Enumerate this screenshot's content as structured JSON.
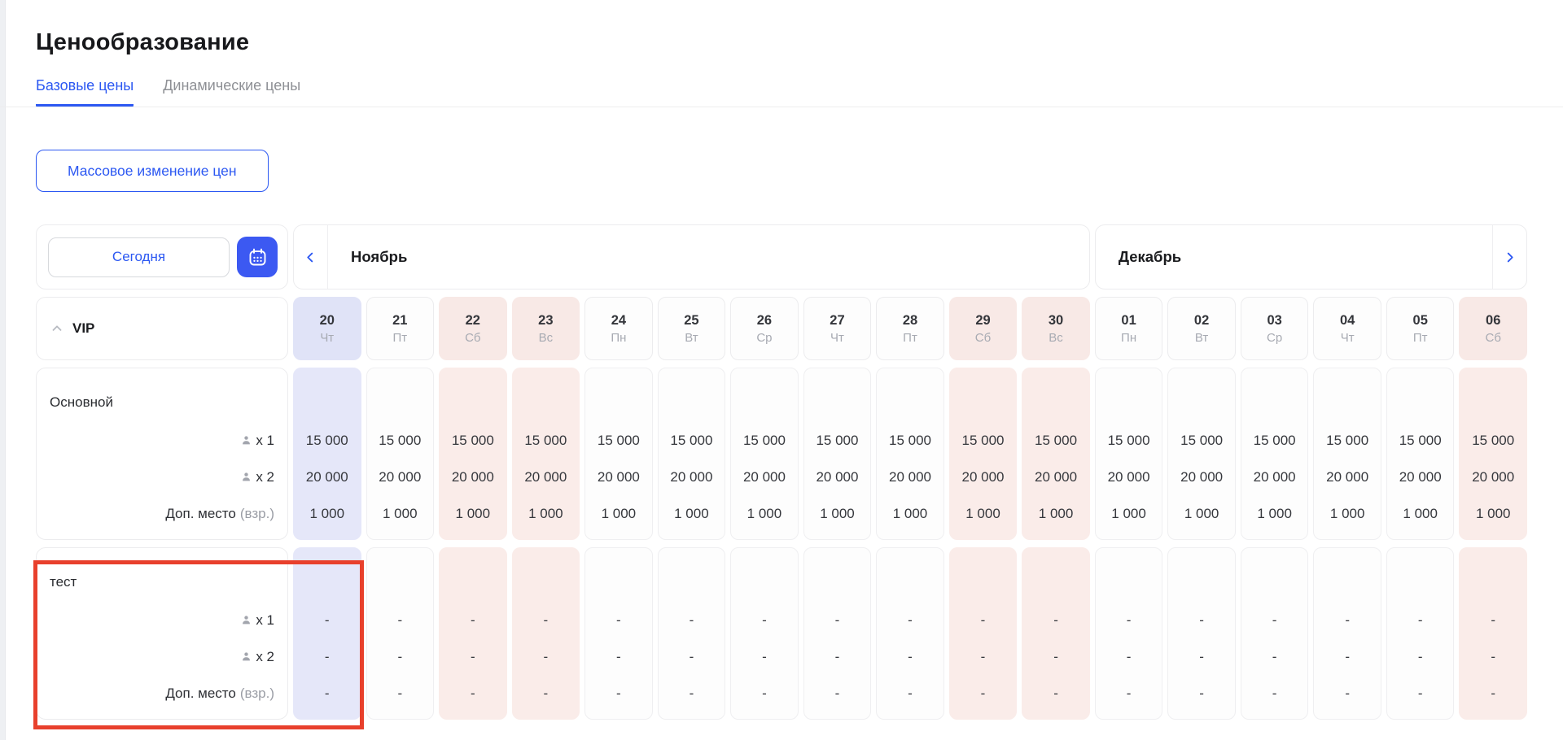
{
  "page": {
    "title": "Ценообразование"
  },
  "tabs": [
    {
      "label": "Базовые цены",
      "active": true
    },
    {
      "label": "Динамические цены",
      "active": false
    }
  ],
  "toolbar": {
    "bulk_change_label": "Массовое изменение цен"
  },
  "date_nav": {
    "today_label": "Сегодня",
    "months": [
      {
        "name": "Ноябрь",
        "columns": 11
      },
      {
        "name": "Декабрь",
        "columns": 6
      }
    ]
  },
  "category": {
    "name": "VIP",
    "state": "expanded"
  },
  "columns": [
    {
      "day": "20",
      "weekday": "Чт",
      "kind": "today"
    },
    {
      "day": "21",
      "weekday": "Пт",
      "kind": "normal"
    },
    {
      "day": "22",
      "weekday": "Сб",
      "kind": "weekend"
    },
    {
      "day": "23",
      "weekday": "Вс",
      "kind": "weekend"
    },
    {
      "day": "24",
      "weekday": "Пн",
      "kind": "normal"
    },
    {
      "day": "25",
      "weekday": "Вт",
      "kind": "normal"
    },
    {
      "day": "26",
      "weekday": "Ср",
      "kind": "normal"
    },
    {
      "day": "27",
      "weekday": "Чт",
      "kind": "normal"
    },
    {
      "day": "28",
      "weekday": "Пт",
      "kind": "normal"
    },
    {
      "day": "29",
      "weekday": "Сб",
      "kind": "weekend"
    },
    {
      "day": "30",
      "weekday": "Вс",
      "kind": "weekend"
    },
    {
      "day": "01",
      "weekday": "Пн",
      "kind": "normal"
    },
    {
      "day": "02",
      "weekday": "Вт",
      "kind": "normal"
    },
    {
      "day": "03",
      "weekday": "Ср",
      "kind": "normal"
    },
    {
      "day": "04",
      "weekday": "Чт",
      "kind": "normal"
    },
    {
      "day": "05",
      "weekday": "Пт",
      "kind": "normal"
    },
    {
      "day": "06",
      "weekday": "Сб",
      "kind": "weekend"
    }
  ],
  "sections": [
    {
      "name": "Основной",
      "highlighted": false,
      "rows": [
        {
          "icon": "person",
          "label": "x 1",
          "suffix": "",
          "values": [
            "15 000",
            "15 000",
            "15 000",
            "15 000",
            "15 000",
            "15 000",
            "15 000",
            "15 000",
            "15 000",
            "15 000",
            "15 000",
            "15 000",
            "15 000",
            "15 000",
            "15 000",
            "15 000",
            "15 000"
          ]
        },
        {
          "icon": "person",
          "label": "x 2",
          "suffix": "",
          "values": [
            "20 000",
            "20 000",
            "20 000",
            "20 000",
            "20 000",
            "20 000",
            "20 000",
            "20 000",
            "20 000",
            "20 000",
            "20 000",
            "20 000",
            "20 000",
            "20 000",
            "20 000",
            "20 000",
            "20 000"
          ]
        },
        {
          "icon": "",
          "label": "Доп. место",
          "suffix": "(взр.)",
          "values": [
            "1 000",
            "1 000",
            "1 000",
            "1 000",
            "1 000",
            "1 000",
            "1 000",
            "1 000",
            "1 000",
            "1 000",
            "1 000",
            "1 000",
            "1 000",
            "1 000",
            "1 000",
            "1 000",
            "1 000"
          ]
        }
      ]
    },
    {
      "name": "тест",
      "highlighted": true,
      "rows": [
        {
          "icon": "person",
          "label": "x 1",
          "suffix": "",
          "values": [
            "-",
            "-",
            "-",
            "-",
            "-",
            "-",
            "-",
            "-",
            "-",
            "-",
            "-",
            "-",
            "-",
            "-",
            "-",
            "-",
            "-"
          ]
        },
        {
          "icon": "person",
          "label": "x 2",
          "suffix": "",
          "values": [
            "-",
            "-",
            "-",
            "-",
            "-",
            "-",
            "-",
            "-",
            "-",
            "-",
            "-",
            "-",
            "-",
            "-",
            "-",
            "-",
            "-"
          ]
        },
        {
          "icon": "",
          "label": "Доп. место",
          "suffix": "(взр.)",
          "values": [
            "-",
            "-",
            "-",
            "-",
            "-",
            "-",
            "-",
            "-",
            "-",
            "-",
            "-",
            "-",
            "-",
            "-",
            "-",
            "-",
            "-"
          ]
        }
      ]
    }
  ],
  "colors": {
    "accent_blue": "#2c58f2",
    "today_bg": "#e5e7f9",
    "weekend_bg": "#faece9",
    "highlight_border": "#e8402c"
  }
}
